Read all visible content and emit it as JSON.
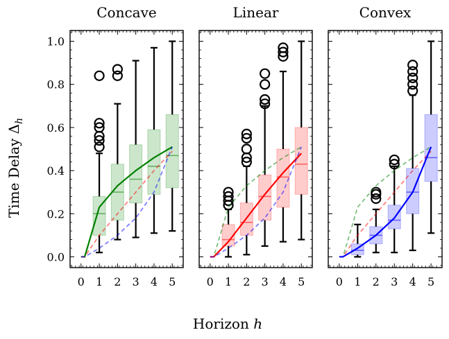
{
  "figure": {
    "ylabel": "Time Delay Δ",
    "ylabel_sub": "h",
    "xlabel": "Horizon",
    "xlabel_var": "h",
    "colors": {
      "concave": "#008000",
      "linear": "#ff0000",
      "convex": "#0000ff"
    }
  },
  "chart_data": [
    {
      "type": "box",
      "title": "Concave",
      "accent": "#008000",
      "x": [
        0,
        1,
        2,
        3,
        4,
        5
      ],
      "xlim": [
        -0.6,
        5.6
      ],
      "ylim": [
        -0.05,
        1.05
      ],
      "yticks": [
        0.0,
        0.2,
        0.4,
        0.6,
        0.8,
        1.0
      ],
      "ytick_labels": [
        "0.0",
        "0.2",
        "0.4",
        "0.6",
        "0.8",
        "1.0"
      ],
      "boxes": [
        {
          "x": 1,
          "q1": 0.1,
          "median": 0.2,
          "q3": 0.28,
          "wlo": 0.02,
          "whi": 0.48,
          "outliers": [
            0.51,
            0.54,
            0.56,
            0.6,
            0.62,
            0.84
          ]
        },
        {
          "x": 2,
          "q1": 0.17,
          "median": 0.3,
          "q3": 0.43,
          "wlo": 0.08,
          "whi": 0.71,
          "outliers": [
            0.84,
            0.87
          ]
        },
        {
          "x": 3,
          "q1": 0.25,
          "median": 0.36,
          "q3": 0.52,
          "wlo": 0.09,
          "whi": 0.91,
          "outliers": []
        },
        {
          "x": 4,
          "q1": 0.29,
          "median": 0.42,
          "q3": 0.59,
          "wlo": 0.11,
          "whi": 0.97,
          "outliers": []
        },
        {
          "x": 5,
          "q1": 0.32,
          "median": 0.47,
          "q3": 0.66,
          "wlo": 0.12,
          "whi": 1.0,
          "outliers": []
        }
      ],
      "lines": [
        {
          "name": "Concave",
          "color": "#008000",
          "style": "solid",
          "x": [
            0,
            0.2,
            1,
            2,
            3,
            4,
            5
          ],
          "y": [
            0,
            0,
            0.23,
            0.33,
            0.4,
            0.46,
            0.51
          ]
        },
        {
          "name": "Linear",
          "color": "#ff0000",
          "style": "dashed",
          "x": [
            0,
            0.2,
            1,
            2,
            3,
            4,
            5
          ],
          "y": [
            0,
            0,
            0.1,
            0.2,
            0.3,
            0.4,
            0.49
          ]
        },
        {
          "name": "Convex",
          "color": "#0000ff",
          "style": "dashed",
          "x": [
            0,
            0.2,
            1,
            2,
            3,
            4,
            5
          ],
          "y": [
            0,
            0,
            0.04,
            0.1,
            0.18,
            0.3,
            0.51
          ]
        }
      ]
    },
    {
      "type": "box",
      "title": "Linear",
      "accent": "#ff0000",
      "x": [
        0,
        1,
        2,
        3,
        4,
        5
      ],
      "xlim": [
        -0.6,
        5.6
      ],
      "ylim": [
        -0.05,
        1.05
      ],
      "yticks": [
        0.0,
        0.2,
        0.4,
        0.6,
        0.8,
        1.0
      ],
      "ytick_labels": [],
      "boxes": [
        {
          "x": 1,
          "q1": 0.05,
          "median": 0.08,
          "q3": 0.15,
          "wlo": 0.0,
          "whi": 0.22,
          "outliers": [
            0.24,
            0.26,
            0.28,
            0.3
          ]
        },
        {
          "x": 2,
          "q1": 0.1,
          "median": 0.16,
          "q3": 0.25,
          "wlo": 0.01,
          "whi": 0.42,
          "outliers": [
            0.44,
            0.46,
            0.5,
            0.55,
            0.57
          ]
        },
        {
          "x": 3,
          "q1": 0.17,
          "median": 0.28,
          "q3": 0.38,
          "wlo": 0.05,
          "whi": 0.7,
          "outliers": [
            0.71,
            0.73,
            0.8,
            0.85
          ]
        },
        {
          "x": 4,
          "q1": 0.23,
          "median": 0.37,
          "q3": 0.5,
          "wlo": 0.07,
          "whi": 0.86,
          "outliers": [
            0.93,
            0.95,
            0.97
          ]
        },
        {
          "x": 5,
          "q1": 0.29,
          "median": 0.43,
          "q3": 0.6,
          "wlo": 0.08,
          "whi": 1.0,
          "outliers": []
        }
      ],
      "lines": [
        {
          "name": "Concave",
          "color": "#008000",
          "style": "dashed",
          "x": [
            0,
            0.2,
            1,
            2,
            3,
            4,
            5
          ],
          "y": [
            0,
            0,
            0.23,
            0.33,
            0.4,
            0.46,
            0.51
          ]
        },
        {
          "name": "Linear",
          "color": "#ff0000",
          "style": "solid",
          "x": [
            0,
            0.2,
            1,
            2,
            3,
            4,
            5
          ],
          "y": [
            0,
            0,
            0.07,
            0.18,
            0.29,
            0.39,
            0.48
          ]
        },
        {
          "name": "Convex",
          "color": "#0000ff",
          "style": "dashed",
          "x": [
            0,
            0.2,
            1,
            2,
            3,
            4,
            5
          ],
          "y": [
            0,
            0,
            0.04,
            0.1,
            0.18,
            0.3,
            0.51
          ]
        }
      ]
    },
    {
      "type": "box",
      "title": "Convex",
      "accent": "#0000ff",
      "x": [
        0,
        1,
        2,
        3,
        4,
        5
      ],
      "xlim": [
        -0.6,
        5.6
      ],
      "ylim": [
        -0.05,
        1.05
      ],
      "yticks": [
        0.0,
        0.2,
        0.4,
        0.6,
        0.8,
        1.0
      ],
      "ytick_labels": [],
      "boxes": [
        {
          "x": 1,
          "q1": 0.01,
          "median": 0.03,
          "q3": 0.06,
          "wlo": 0.0,
          "whi": 0.15,
          "outliers": []
        },
        {
          "x": 2,
          "q1": 0.06,
          "median": 0.1,
          "q3": 0.14,
          "wlo": 0.02,
          "whi": 0.22,
          "outliers": [
            0.27,
            0.29,
            0.3
          ]
        },
        {
          "x": 3,
          "q1": 0.13,
          "median": 0.17,
          "q3": 0.24,
          "wlo": 0.02,
          "whi": 0.42,
          "outliers": [
            0.43,
            0.45
          ]
        },
        {
          "x": 4,
          "q1": 0.2,
          "median": 0.3,
          "q3": 0.41,
          "wlo": 0.03,
          "whi": 0.75,
          "outliers": [
            0.77,
            0.8,
            0.83,
            0.86,
            0.89
          ]
        },
        {
          "x": 5,
          "q1": 0.35,
          "median": 0.46,
          "q3": 0.66,
          "wlo": 0.11,
          "whi": 1.0,
          "outliers": []
        }
      ],
      "lines": [
        {
          "name": "Concave",
          "color": "#008000",
          "style": "dashed",
          "x": [
            0,
            0.2,
            1,
            2,
            3,
            4,
            5
          ],
          "y": [
            0,
            0,
            0.23,
            0.33,
            0.4,
            0.46,
            0.51
          ]
        },
        {
          "name": "Linear",
          "color": "#ff0000",
          "style": "dashed",
          "x": [
            0,
            0.2,
            1,
            2,
            3,
            4,
            5
          ],
          "y": [
            0,
            0,
            0.1,
            0.2,
            0.3,
            0.4,
            0.49
          ]
        },
        {
          "name": "Convex",
          "color": "#0000ff",
          "style": "solid",
          "x": [
            0,
            0.2,
            1,
            2,
            3,
            4,
            5
          ],
          "y": [
            0,
            0,
            0.04,
            0.1,
            0.18,
            0.3,
            0.51
          ]
        }
      ]
    }
  ]
}
